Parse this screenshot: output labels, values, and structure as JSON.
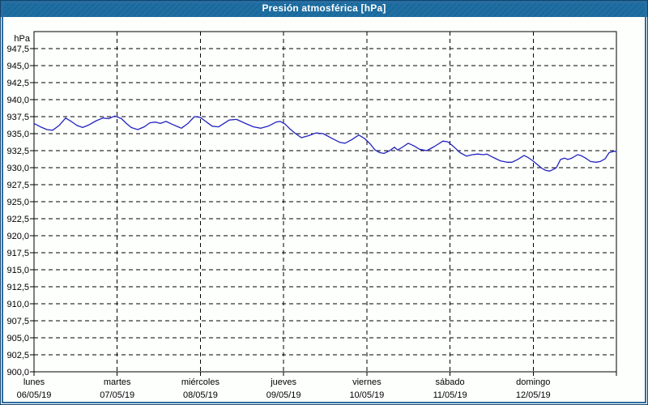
{
  "window": {
    "title": "Presión atmosférica [hPa]"
  },
  "colors": {
    "titlebar_bg": "#186A9F",
    "title_text": "#FFFFFF",
    "border": "#2D6DA1",
    "border_dark": "#14456D",
    "plot_bg": "#FDFFFD",
    "grid": "#000000",
    "label_text": "#000000",
    "line": "#2323BE"
  },
  "chart_data": {
    "type": "line",
    "title": "Presión atmosférica [hPa]",
    "y_unit_label": "hPa",
    "ylim": [
      900,
      950
    ],
    "ytick_step": 2.5,
    "grid": "dashed",
    "legend_position": "none",
    "ytick_values": [
      947.5,
      945,
      942.5,
      940,
      937.5,
      935,
      932.5,
      930,
      927.5,
      925,
      922.5,
      920,
      917.5,
      915,
      912.5,
      910,
      907.5,
      905,
      902.5,
      900
    ],
    "ytick_labels": [
      "947,5",
      "945,0",
      "942,5",
      "940,0",
      "937,5",
      "935,0",
      "932,5",
      "930,0",
      "927,5",
      "925,0",
      "922,5",
      "920,0",
      "917,5",
      "915,0",
      "912,5",
      "910,0",
      "907,5",
      "905,0",
      "902,5",
      "900,0"
    ],
    "x_axis": {
      "days": [
        {
          "name": "lunes",
          "date": "06/05/19"
        },
        {
          "name": "martes",
          "date": "07/05/19"
        },
        {
          "name": "miércoles",
          "date": "08/05/19"
        },
        {
          "name": "jueves",
          "date": "09/05/19"
        },
        {
          "name": "viernes",
          "date": "10/05/19"
        },
        {
          "name": "sábado",
          "date": "11/05/19"
        },
        {
          "name": "domingo",
          "date": "12/05/19"
        }
      ]
    },
    "series": [
      {
        "name": "Presión atmosférica",
        "x_days": [
          0.0,
          0.078,
          0.156,
          0.224,
          0.302,
          0.38,
          0.448,
          0.516,
          0.584,
          0.662,
          0.75,
          0.828,
          0.896,
          0.973,
          1.051,
          1.11,
          1.168,
          1.246,
          1.324,
          1.392,
          1.46,
          1.519,
          1.587,
          1.655,
          1.733,
          1.772,
          1.85,
          1.928,
          1.996,
          2.064,
          2.142,
          2.22,
          2.346,
          2.434,
          2.541,
          2.638,
          2.726,
          2.814,
          2.911,
          2.96,
          3.018,
          3.076,
          3.135,
          3.213,
          3.3,
          3.388,
          3.476,
          3.583,
          3.68,
          3.739,
          3.816,
          3.904,
          3.972,
          4.04,
          4.099,
          4.157,
          4.206,
          4.274,
          4.332,
          4.371,
          4.439,
          4.498,
          4.566,
          4.634,
          4.721,
          4.809,
          4.916,
          4.975,
          5.052,
          5.121,
          5.198,
          5.266,
          5.334,
          5.403,
          5.442,
          5.52,
          5.607,
          5.685,
          5.744,
          5.812,
          5.89,
          5.938,
          5.997,
          6.055,
          6.104,
          6.152,
          6.201,
          6.25,
          6.279,
          6.328,
          6.377,
          6.416,
          6.464,
          6.533,
          6.571,
          6.63,
          6.688,
          6.757,
          6.805,
          6.864,
          6.912,
          6.971,
          7.0
        ],
        "y_hpa": [
          936.5,
          936.0,
          935.6,
          935.5,
          936.2,
          937.3,
          936.8,
          936.2,
          935.9,
          936.3,
          936.9,
          937.3,
          937.2,
          937.6,
          937.2,
          936.5,
          935.9,
          935.6,
          936.0,
          936.6,
          936.7,
          936.5,
          936.8,
          936.4,
          936.0,
          935.8,
          936.5,
          937.5,
          937.4,
          936.8,
          936.1,
          936.0,
          937.0,
          937.1,
          936.5,
          936.0,
          935.8,
          936.1,
          936.7,
          936.8,
          936.4,
          935.7,
          935.1,
          934.4,
          934.7,
          935.1,
          935.0,
          934.3,
          933.7,
          933.6,
          934.1,
          934.8,
          934.3,
          933.5,
          932.6,
          932.2,
          932.1,
          932.5,
          933.0,
          932.6,
          933.1,
          933.6,
          933.2,
          932.7,
          932.5,
          933.1,
          933.9,
          933.8,
          933.0,
          932.2,
          931.7,
          931.9,
          932.0,
          931.9,
          932.0,
          931.5,
          931.0,
          930.8,
          930.8,
          931.2,
          931.8,
          931.5,
          931.0,
          930.4,
          929.9,
          929.6,
          929.5,
          929.8,
          930.0,
          931.2,
          931.4,
          931.2,
          931.4,
          931.9,
          931.8,
          931.4,
          930.9,
          930.8,
          930.9,
          931.3,
          932.2,
          932.4,
          932.4
        ]
      }
    ]
  }
}
